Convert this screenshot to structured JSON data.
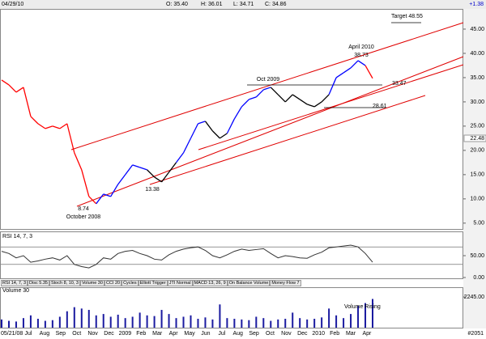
{
  "header": {
    "date": "04/29/10",
    "ohlc": [
      "O: 35.40",
      "H: 36.01",
      "L: 34.71",
      "C: 34.86"
    ],
    "change": "+1.38"
  },
  "chart_data": [
    {
      "type": "line",
      "ylim": [
        3.8,
        49
      ],
      "yticks": [
        {
          "value": 45,
          "label": "45.00"
        },
        {
          "value": 40,
          "label": "40.00"
        },
        {
          "value": 35,
          "label": "35.00"
        },
        {
          "value": 30,
          "label": "30.00"
        },
        {
          "value": 25,
          "label": "25.00"
        },
        {
          "value": 20,
          "label": "20.00"
        },
        {
          "value": 15,
          "label": "15.00"
        },
        {
          "value": 10,
          "label": "10.00"
        },
        {
          "value": 5,
          "label": "5.00"
        }
      ],
      "highlight_tick": {
        "value": 22.48,
        "label": "22.48"
      },
      "series": [
        {
          "values": [
            34.5,
            33.5,
            32.0,
            33.0,
            27.0,
            25.5,
            24.5,
            25.0,
            24.5,
            25.5,
            19.5,
            16.0,
            10.5,
            9.0,
            11.0,
            10.5,
            13.0,
            15.0,
            17.0,
            16.5,
            16.0,
            14.5,
            13.5,
            15.5,
            17.5,
            19.5,
            22.5,
            25.5,
            26.0,
            24.0,
            22.5,
            23.5,
            26.5,
            29.0,
            30.5,
            31.0,
            32.5,
            33.0,
            31.5,
            30.0,
            31.5,
            30.5,
            29.5,
            29.0,
            30.0,
            31.5,
            35.0,
            36.0,
            37.0,
            38.5,
            37.5,
            34.86
          ],
          "colors": [
            "red",
            "red",
            "red",
            "red",
            "red",
            "red",
            "red",
            "red",
            "red",
            "red",
            "red",
            "red",
            "red",
            "red",
            "blue",
            "blue",
            "blue",
            "blue",
            "blue",
            "blue",
            "blue",
            "black",
            "black",
            "black",
            "black",
            "blue",
            "blue",
            "blue",
            "blue",
            "black",
            "black",
            "black",
            "blue",
            "blue",
            "blue",
            "blue",
            "blue",
            "blue",
            "black",
            "black",
            "black",
            "black",
            "black",
            "black",
            "black",
            "black",
            "blue",
            "blue",
            "blue",
            "blue",
            "blue",
            "red"
          ]
        }
      ],
      "annotations": [
        "Target 48.55",
        "April 2010",
        "38.73",
        "Oct 2009",
        "33.47",
        "28.61",
        "8.74",
        "October 2008",
        "13.38"
      ]
    },
    {
      "type": "line",
      "title": "RSI 14, 7, 3",
      "ylim": [
        0,
        100
      ],
      "yticks": [
        {
          "value": 50,
          "label": "50.00"
        },
        {
          "value": 0,
          "label": "0.00"
        }
      ],
      "levels": [
        30,
        70
      ],
      "series": [
        {
          "color": "#333333",
          "values": [
            60,
            55,
            45,
            50,
            35,
            38,
            42,
            45,
            40,
            50,
            30,
            25,
            22,
            30,
            45,
            42,
            55,
            60,
            62,
            55,
            50,
            42,
            40,
            52,
            60,
            65,
            68,
            70,
            62,
            50,
            45,
            52,
            60,
            65,
            62,
            64,
            66,
            55,
            45,
            50,
            48,
            45,
            44,
            52,
            58,
            68,
            70,
            72,
            74,
            70,
            55,
            35
          ]
        }
      ]
    },
    {
      "type": "bar",
      "title": "Volume 30",
      "ylim": [
        0,
        2900
      ],
      "yticks": [
        {
          "value": 2245,
          "label": "2245.00"
        }
      ],
      "color": "#1a1aa0",
      "annotation": "Volume Rising",
      "values": [
        600,
        500,
        450,
        700,
        900,
        650,
        500,
        550,
        800,
        1200,
        1500,
        1400,
        1300,
        900,
        1000,
        800,
        950,
        700,
        800,
        1100,
        900,
        850,
        1300,
        1000,
        700,
        800,
        900,
        650,
        750,
        600,
        1700,
        700,
        650,
        600,
        550,
        800,
        700,
        500,
        600,
        650,
        1100,
        700,
        600,
        650,
        750,
        1400,
        900,
        700,
        1000,
        1600,
        1800,
        2100
      ]
    }
  ],
  "tabs": [
    "RSI 14, 7, 3",
    "Disc 5.35",
    "Stoch 8, 10, 3",
    "Volume 30",
    "CCI 20",
    "Cycles",
    "Elliott Trigger",
    "JTI Normal",
    "MACD 13, 26, 9",
    "On Balance Volume",
    "Money Flow 7"
  ],
  "x_axis_labels": [
    "05/21/08",
    "Jul",
    "Aug",
    "Sep",
    "Oct",
    "Nov",
    "Dec",
    "2009",
    "Feb",
    "Mar",
    "Apr",
    "May",
    "Jun",
    "Jul",
    "Aug",
    "Sep",
    "Oct",
    "Nov",
    "Dec",
    "2010",
    "Feb",
    "Mar",
    "Apr"
  ],
  "footer_id": "#2051"
}
